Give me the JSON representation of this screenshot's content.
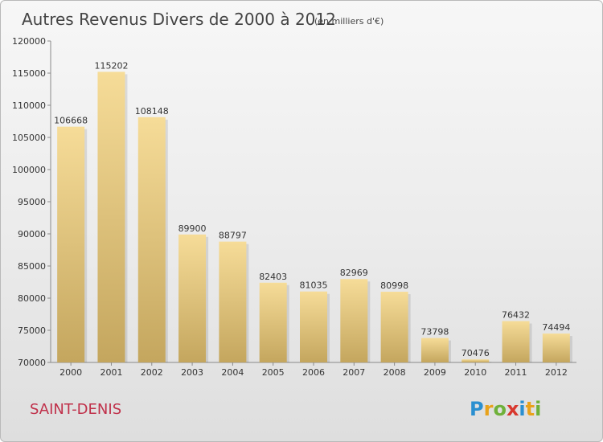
{
  "chart_data": {
    "type": "bar",
    "title": "Autres Revenus Divers de 2000 à 2012",
    "subtitle": "(en milliers d'€)",
    "categories": [
      "2000",
      "2001",
      "2002",
      "2003",
      "2004",
      "2005",
      "2006",
      "2007",
      "2008",
      "2009",
      "2010",
      "2011",
      "2012"
    ],
    "values": [
      106668,
      115202,
      108148,
      89900,
      88797,
      82403,
      81035,
      82969,
      80998,
      73798,
      70476,
      76432,
      74494
    ],
    "ylim": [
      70000,
      120000
    ],
    "yticks": [
      70000,
      75000,
      80000,
      85000,
      90000,
      95000,
      100000,
      105000,
      110000,
      115000,
      120000
    ],
    "grid": false,
    "colors": {
      "bar_light": "#f6dc98",
      "bar_dark": "#c4a65e",
      "axis": "#8a8a8a"
    }
  },
  "footer": {
    "city": "SAINT-DENIS",
    "logo_letters": [
      {
        "ch": "P",
        "color": "#2a8fd0"
      },
      {
        "ch": "r",
        "color": "#e8a21a"
      },
      {
        "ch": "o",
        "color": "#6fb13a"
      },
      {
        "ch": "x",
        "color": "#d8382e"
      },
      {
        "ch": "i",
        "color": "#2a8fd0"
      },
      {
        "ch": "t",
        "color": "#e8a21a"
      },
      {
        "ch": "i",
        "color": "#6fb13a"
      }
    ]
  }
}
